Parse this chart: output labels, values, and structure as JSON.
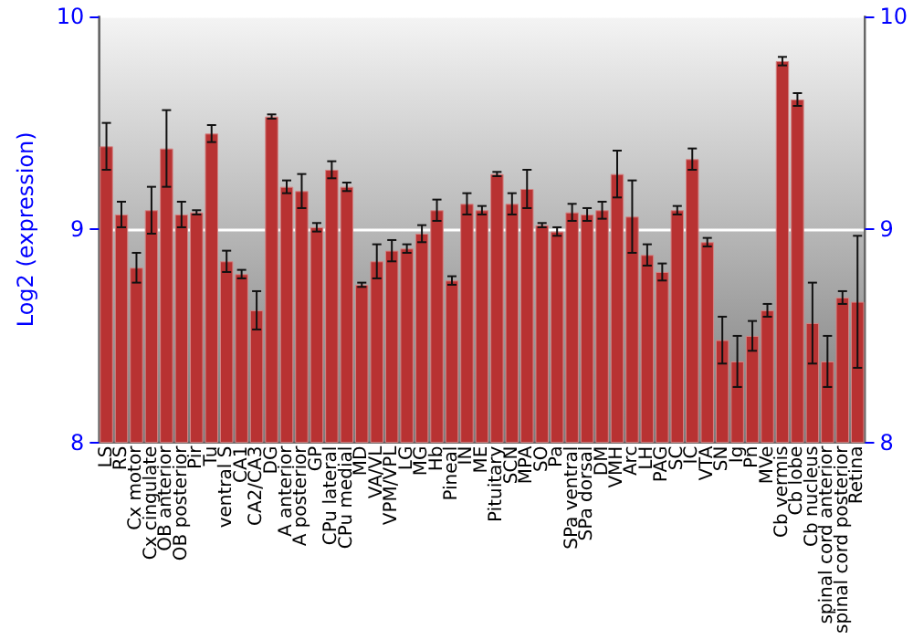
{
  "chart_data": {
    "type": "bar",
    "ylabel": "Log2 (expression)",
    "categories": [
      "LS",
      "RS",
      "Cx motor",
      "Cx cingulate",
      "OB anterior",
      "OB posterior",
      "Pir",
      "Tu",
      "ventral S",
      "CA1",
      "CA2/CA3",
      "DG",
      "A anterior",
      "A posterior",
      "GP",
      "CPu lateral",
      "CPu medial",
      "MD",
      "VA/VL",
      "VPM/VPL",
      "LG",
      "MG",
      "Hb",
      "Pineal",
      "IN",
      "ME",
      "Pituitary",
      "SCN",
      "MPA",
      "SO",
      "Pa",
      "SPa ventral",
      "SPa dorsal",
      "DM",
      "VMH",
      "Arc",
      "LH",
      "PAG",
      "SC",
      "IC",
      "VTA",
      "SN",
      "Ig",
      "Pn",
      "MVe",
      "Cb vermis",
      "Cb lobe",
      "Cb nucleus",
      "spinal cord anterior",
      "spinal cord posterior",
      "Retina"
    ],
    "values": [
      9.39,
      9.07,
      8.82,
      9.09,
      9.38,
      9.07,
      9.08,
      9.45,
      8.85,
      8.79,
      8.62,
      9.53,
      9.2,
      9.18,
      9.01,
      9.28,
      9.2,
      8.74,
      8.85,
      8.9,
      8.91,
      8.98,
      9.09,
      8.76,
      9.12,
      9.09,
      9.26,
      9.12,
      9.19,
      9.02,
      8.99,
      9.08,
      9.07,
      9.09,
      9.26,
      9.06,
      8.88,
      8.8,
      9.09,
      9.33,
      8.94,
      8.48,
      8.38,
      8.5,
      8.62,
      9.79,
      9.61,
      8.56,
      8.38,
      8.68,
      8.66
    ],
    "errors": [
      0.11,
      0.06,
      0.07,
      0.11,
      0.18,
      0.06,
      0.01,
      0.04,
      0.05,
      0.02,
      0.09,
      0.01,
      0.03,
      0.08,
      0.02,
      0.04,
      0.02,
      0.01,
      0.08,
      0.05,
      0.02,
      0.04,
      0.05,
      0.02,
      0.05,
      0.02,
      0.01,
      0.05,
      0.09,
      0.01,
      0.02,
      0.04,
      0.03,
      0.04,
      0.11,
      0.17,
      0.05,
      0.04,
      0.02,
      0.05,
      0.02,
      0.11,
      0.12,
      0.07,
      0.03,
      0.02,
      0.03,
      0.19,
      0.12,
      0.03,
      0.31
    ],
    "color": "#b83232",
    "ylim": [
      8,
      10
    ],
    "yticks": [
      8,
      9,
      10
    ],
    "y2lim": [
      8,
      10
    ],
    "y2ticks": [
      8,
      9,
      10
    ],
    "grid": "y"
  }
}
